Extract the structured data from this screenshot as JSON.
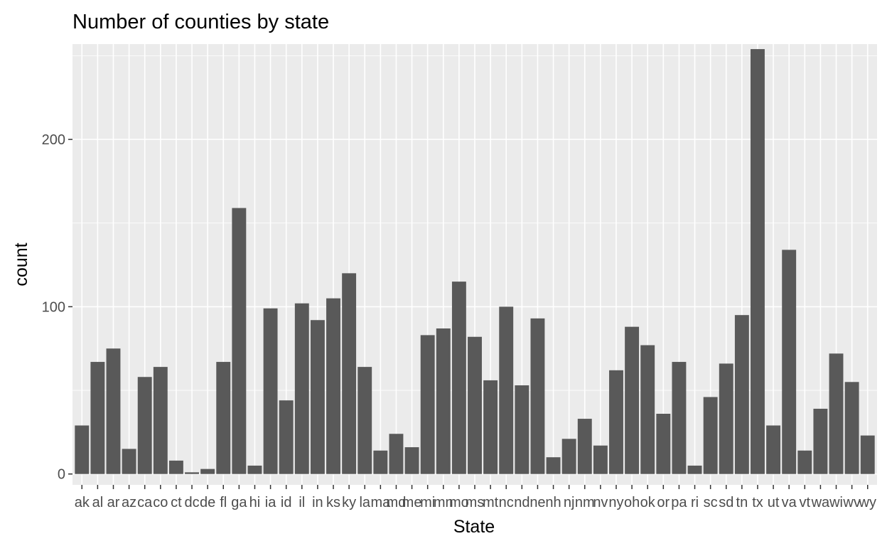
{
  "chart_data": {
    "type": "bar",
    "title": "Number of counties by state",
    "xlabel": "State",
    "ylabel": "count",
    "ylim": [
      -6.5,
      257
    ],
    "yticks": [
      0,
      100,
      200
    ],
    "grid": true,
    "legend": "none",
    "colors": {
      "bar": "#595959",
      "panel": "#ebebeb",
      "grid_major": "#ffffff",
      "tick_text": "#4d4d4d"
    },
    "categories": [
      "ak",
      "al",
      "ar",
      "az",
      "ca",
      "co",
      "ct",
      "dc",
      "de",
      "fl",
      "ga",
      "hi",
      "ia",
      "id",
      "il",
      "in",
      "ks",
      "ky",
      "la",
      "ma",
      "md",
      "me",
      "mi",
      "mn",
      "mo",
      "ms",
      "mt",
      "nc",
      "nd",
      "ne",
      "nh",
      "nj",
      "nm",
      "nv",
      "ny",
      "oh",
      "ok",
      "or",
      "pa",
      "ri",
      "sc",
      "sd",
      "tn",
      "tx",
      "ut",
      "va",
      "vt",
      "wa",
      "wi",
      "wv",
      "wy"
    ],
    "values": [
      29,
      67,
      75,
      15,
      58,
      64,
      8,
      1,
      3,
      67,
      159,
      5,
      99,
      44,
      102,
      92,
      105,
      120,
      64,
      14,
      24,
      16,
      83,
      87,
      115,
      82,
      56,
      100,
      53,
      93,
      10,
      21,
      33,
      17,
      62,
      88,
      77,
      36,
      67,
      5,
      46,
      66,
      95,
      254,
      29,
      134,
      14,
      39,
      72,
      55,
      23
    ]
  }
}
